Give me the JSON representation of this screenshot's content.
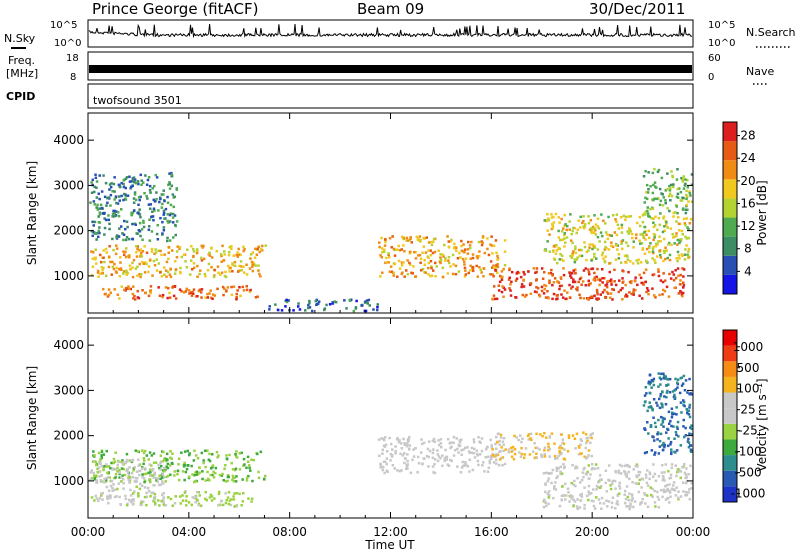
{
  "header": {
    "station": "Prince George (fitACF)",
    "beam": "Beam 09",
    "date": "30/Dec/2011"
  },
  "strips": {
    "nsky_label": "N.Sky",
    "nsearch_label": "N.Search",
    "freq_label": "Freq.",
    "freq_unit": "[MHz]",
    "nave_label": "Nave",
    "cpid_label": "CPID",
    "cpid_value": "twofsound 3501",
    "noise_left_ticks": [
      "10^5",
      "10^0"
    ],
    "noise_right_ticks": [
      "10^5",
      "10^0"
    ],
    "freq_ticks": [
      "18",
      "8"
    ],
    "nave_ticks": [
      "60",
      "0"
    ]
  },
  "colors": {
    "power_scale": [
      "#1414e6",
      "#2850b4",
      "#3c8c64",
      "#50aa50",
      "#b4d232",
      "#f0c81e",
      "#f08c14",
      "#e65a14",
      "#dc1e1e"
    ],
    "velocity_scale": [
      "#e60000",
      "#f03c14",
      "#f58c14",
      "#f5b41e",
      "#c8c8c8",
      "#c8c8c8",
      "#9ad241",
      "#3caa3c",
      "#2d8c8c",
      "#285ab4",
      "#1e32c8"
    ],
    "line": "#000000"
  },
  "chart_data": [
    {
      "type": "heatmap",
      "panel": "power",
      "ylabel": "Slant Range [km]",
      "xlabel": "",
      "x_ticks": [
        "00:00",
        "04:00",
        "08:00",
        "12:00",
        "16:00",
        "20:00",
        "00:00"
      ],
      "y_ticks": [
        "1000",
        "2000",
        "3000",
        "4000"
      ],
      "ylim": [
        180,
        4600
      ],
      "colorbar": {
        "label": "Power [dB]",
        "ticks": [
          "4",
          "8",
          "12",
          "16",
          "20",
          "24",
          "28"
        ],
        "range": [
          0,
          30
        ]
      },
      "regions": [
        {
          "t0": 0.0,
          "t1": 7.0,
          "r0": 1000,
          "r1": 1700,
          "level": 0.65
        },
        {
          "t0": 0.5,
          "t1": 6.7,
          "r0": 500,
          "r1": 800,
          "level": 0.85
        },
        {
          "t0": 0.0,
          "t1": 3.5,
          "r0": 1800,
          "r1": 3300,
          "level": 0.25
        },
        {
          "t0": 7.0,
          "t1": 11.5,
          "r0": 250,
          "r1": 500,
          "level": 0.15
        },
        {
          "t0": 11.5,
          "t1": 16.5,
          "r0": 1000,
          "r1": 1900,
          "level": 0.7
        },
        {
          "t0": 16.0,
          "t1": 23.6,
          "r0": 500,
          "r1": 1200,
          "level": 0.9
        },
        {
          "t0": 18.0,
          "t1": 24.0,
          "r0": 1300,
          "r1": 2400,
          "level": 0.55
        },
        {
          "t0": 22.0,
          "t1": 24.0,
          "r0": 2400,
          "r1": 3400,
          "level": 0.4
        }
      ]
    },
    {
      "type": "heatmap",
      "panel": "velocity",
      "ylabel": "Slant Range [km]",
      "xlabel": "Time UT",
      "x_ticks": [
        "00:00",
        "04:00",
        "08:00",
        "12:00",
        "16:00",
        "20:00",
        "00:00"
      ],
      "y_ticks": [
        "1000",
        "2000",
        "3000",
        "4000"
      ],
      "ylim": [
        180,
        4600
      ],
      "colorbar": {
        "label": "Velocity [m s⁻¹]",
        "ticks": [
          "1000",
          "500",
          "100",
          "25",
          "-25",
          "-100",
          "-500",
          "-1000"
        ],
        "range": [
          -1000,
          1000
        ]
      },
      "regions": [
        {
          "t0": 0.0,
          "t1": 7.0,
          "r0": 1000,
          "r1": 1700,
          "level": -300
        },
        {
          "t0": 0.0,
          "t1": 3.0,
          "r0": 500,
          "r1": 1500,
          "level": 0
        },
        {
          "t0": 1.5,
          "t1": 6.5,
          "r0": 450,
          "r1": 800,
          "level": -150
        },
        {
          "t0": 11.5,
          "t1": 16.5,
          "r0": 1200,
          "r1": 2000,
          "level": 150
        },
        {
          "t0": 16.0,
          "t1": 20.0,
          "r0": 1500,
          "r1": 2100,
          "level": 300
        },
        {
          "t0": 18.0,
          "t1": 24.0,
          "r0": 400,
          "r1": 1400,
          "level": 0
        },
        {
          "t0": 22.0,
          "t1": 24.0,
          "r0": 1600,
          "r1": 3400,
          "level": -700
        }
      ]
    }
  ]
}
